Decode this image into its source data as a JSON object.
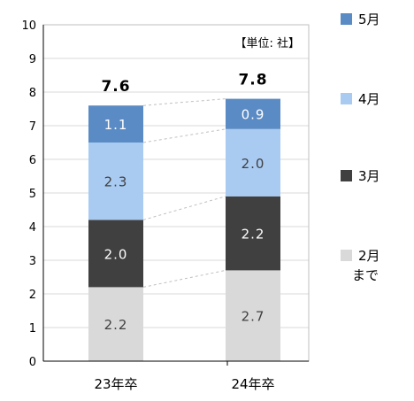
{
  "chart_data": {
    "type": "bar",
    "stacked": true,
    "categories": [
      "23年卒",
      "24年卒"
    ],
    "series": [
      {
        "name": "2月まで",
        "values": [
          2.2,
          2.7
        ],
        "color": "#d9d9d9",
        "label_color": "#404040"
      },
      {
        "name": "3月",
        "values": [
          2.0,
          2.2
        ],
        "color": "#404040",
        "label_color": "#ffffff"
      },
      {
        "name": "4月",
        "values": [
          2.3,
          2.0
        ],
        "color": "#a9cbf2",
        "label_color": "#404040"
      },
      {
        "name": "5月",
        "values": [
          1.1,
          0.9
        ],
        "color": "#5b8bc4",
        "label_color": "#ffffff"
      }
    ],
    "totals": [
      "7.6",
      "7.8"
    ],
    "ylim": [
      0,
      10
    ],
    "yticks": [
      "0",
      "1",
      "2",
      "3",
      "4",
      "5",
      "6",
      "7",
      "8",
      "9",
      "10"
    ],
    "unit_note": "【単位: 社】",
    "grid": true,
    "legend_position": "right",
    "connector_lines": true
  }
}
